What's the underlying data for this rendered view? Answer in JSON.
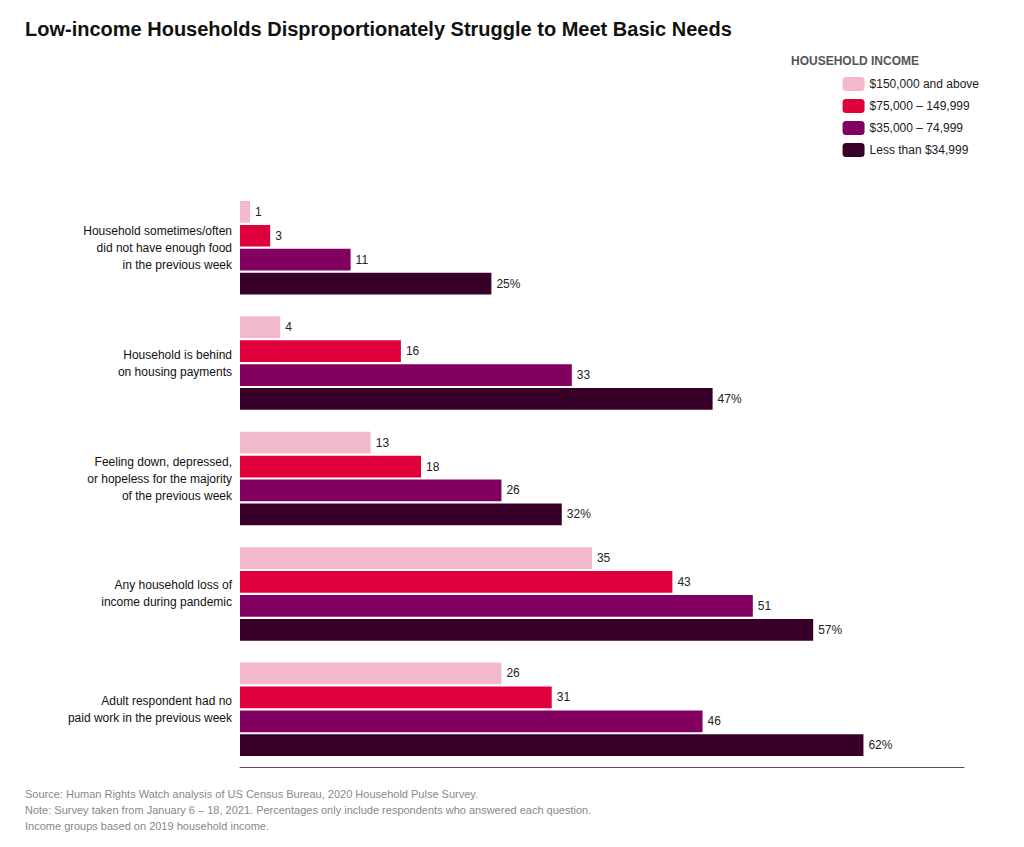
{
  "chart_data": {
    "type": "bar",
    "orientation": "horizontal",
    "title": "Low-income Households Disproportionately Struggle to Meet Basic Needs",
    "legend_title": "HOUSEHOLD INCOME",
    "annotations": [
      "Source: Human Rights Watch analysis of US Census Bureau, 2020 Household Pulse Survey.\nNote: Survey taken from January 6 – 18, 2021. Percentages only include respondents who answered each question.\nIncome groups based on 2019 household income."
    ],
    "categories": [
      "Household sometimes/often\ndid not have enough food\nin the previous week",
      "Household is behind\non housing payments",
      "Feeling down, depressed,\nor hopeless for the majority\nof the previous week",
      "Any household loss of\nincome during pandemic",
      "Adult respondent had no\npaid work in the previous week"
    ],
    "series": [
      {
        "name": "$150,000 and above",
        "color": "#f2b8cc",
        "values": [
          1,
          4,
          13,
          35,
          26
        ]
      },
      {
        "name": "$75,000 – 149,999",
        "color": "#e0003c",
        "values": [
          3,
          16,
          18,
          43,
          31
        ]
      },
      {
        "name": "$35,000 – 74,999",
        "color": "#820060",
        "values": [
          11,
          33,
          26,
          51,
          46
        ]
      },
      {
        "name": "Less than $34,999",
        "color": "#380028",
        "values": [
          25,
          47,
          32,
          57,
          62
        ],
        "value_labels": [
          "25%",
          "47%",
          "32%",
          "57%",
          "62%"
        ]
      }
    ],
    "xlim": [
      0,
      72
    ],
    "data_labels": true,
    "tick_labels": "y",
    "grid": false,
    "legend": "upper right"
  }
}
